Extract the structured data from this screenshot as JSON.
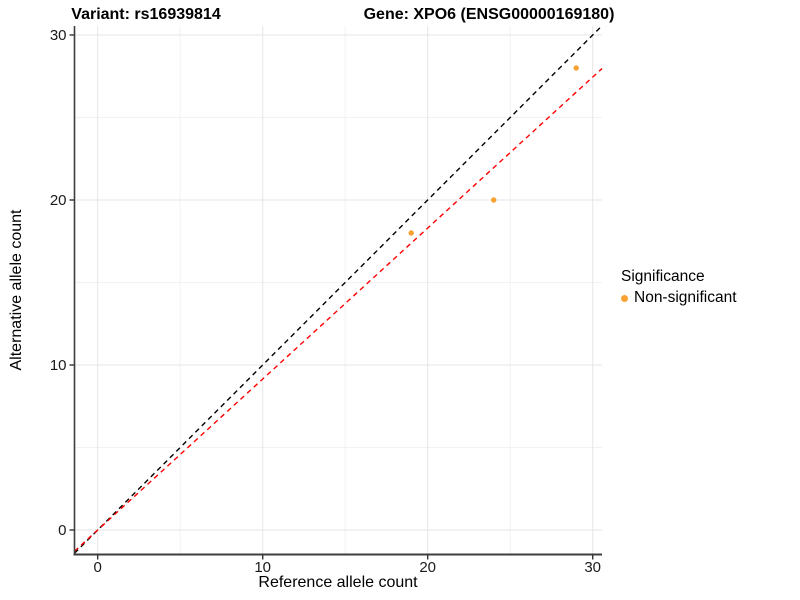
{
  "chart_data": {
    "type": "scatter",
    "title_left": "Variant: rs16939814",
    "title_right": "Gene: XPO6 (ENSG00000169180)",
    "xlabel": "Reference allele count",
    "ylabel": "Alternative allele count",
    "x_ticks": [
      "0",
      "10",
      "20",
      "30"
    ],
    "y_ticks": [
      "0",
      "10",
      "20",
      "30"
    ],
    "x_major": [
      0,
      10,
      20,
      30
    ],
    "x_minor": [
      5,
      15,
      25
    ],
    "y_major": [
      0,
      10,
      20,
      30
    ],
    "y_minor": [
      5,
      15,
      25
    ],
    "xlim": [
      -1.4,
      30.6
    ],
    "ylim": [
      -1.4,
      30.6
    ],
    "grid": true,
    "legend_position": "right",
    "series": [
      {
        "name": "Non-significant",
        "color": "#F9A233",
        "points": [
          {
            "x": 19,
            "y": 18
          },
          {
            "x": 24,
            "y": 20
          },
          {
            "x": 29,
            "y": 28
          }
        ]
      }
    ],
    "reference_lines": [
      {
        "name": "identity-line",
        "slope": 1,
        "intercept": 0,
        "color": "#000000",
        "style": "dashed"
      },
      {
        "name": "expected-ratio-line",
        "slope": 0.915,
        "intercept": 0,
        "color": "#FF0000",
        "style": "dashed"
      }
    ],
    "legend": {
      "title": "Significance",
      "items": [
        {
          "label": "Non-significant",
          "color": "#F9A233"
        }
      ]
    },
    "colors": {
      "grid_major": "#E6E6E6",
      "grid_minor": "#F2F2F2",
      "axis_line": "#3D3D3D",
      "tick": "#333333",
      "text": "#1A1A1A"
    }
  }
}
